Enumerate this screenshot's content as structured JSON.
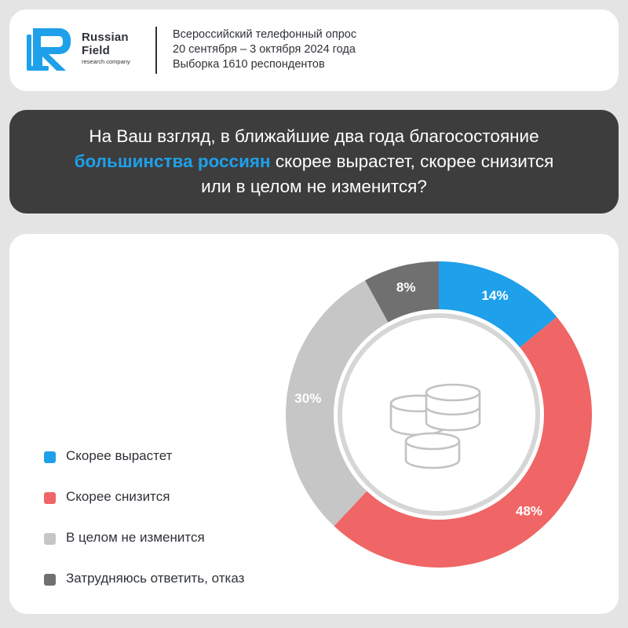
{
  "brand": {
    "name_line1": "Russian",
    "name_line2": "Field",
    "tagline": "research company"
  },
  "survey": {
    "line1": "Всероссийский телефонный опрос",
    "line2": "20 сентября – 3 октября 2024 года",
    "line3": "Выборка 1610 респондентов"
  },
  "question": {
    "part1": "На Ваш взгляд, в ближайшие два года благосостояние",
    "highlight": "большинства россиян",
    "part2": "скорее вырастет, скорее снизится",
    "part3": "или в целом не изменится?"
  },
  "colors": {
    "accent": "#1ea0ea",
    "up": "#1ea0ea",
    "down": "#f06565",
    "same": "#c6c6c6",
    "refuse": "#707070",
    "dark": "#3d3d3d"
  },
  "icons": {
    "logo": "russian-field-logo-icon",
    "center": "coins-icon"
  },
  "chart_data": {
    "type": "pie",
    "donut": true,
    "start_angle_deg": 0,
    "direction": "clockwise",
    "categories": [
      "Скорее вырастет",
      "Скорее снизится",
      "В целом не изменится",
      "Затрудняюсь ответить,   отказ"
    ],
    "values": [
      14,
      48,
      30,
      8
    ],
    "labels": [
      "14%",
      "48%",
      "30%",
      "8%"
    ],
    "colors": [
      "#1ea0ea",
      "#f06565",
      "#c6c6c6",
      "#707070"
    ],
    "unit": "%",
    "legend_position": "left"
  }
}
